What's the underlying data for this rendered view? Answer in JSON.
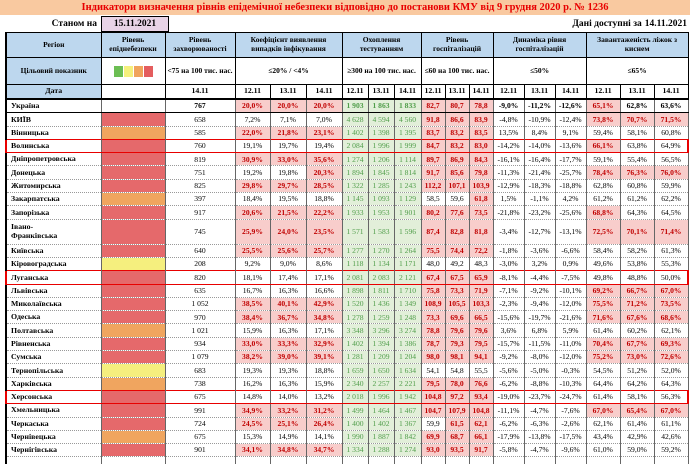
{
  "title": "Індикатори визначення рівнів епідемічної небезпеки відповідно до постанови КМУ від 9 грудня 2020 р. № 1236",
  "meta": {
    "as_of_label": "Станом на",
    "as_of_date": "15.11.2021",
    "available_label": "Дані доступні за",
    "available_date": "14.11.2021"
  },
  "header": {
    "region": "Регіон",
    "target_label": "Цільовий показник",
    "date_label": "Дата",
    "epidemic_level": "Рівень епіднебезпеки",
    "groups": [
      {
        "label": "Рівень захворюваності",
        "target": "<75 на 100 тис. нас.",
        "dates": [
          "14.11"
        ]
      },
      {
        "label": "Коефіцієнт виявлення випадків інфікування",
        "target": "≤20% / <4%",
        "dates": [
          "12.11",
          "13.11",
          "14.11"
        ]
      },
      {
        "label": "Охоплення тестуванням",
        "target": "≥300 на 100 тис. нас.",
        "dates": [
          "12.11",
          "13.11",
          "14.11"
        ]
      },
      {
        "label": "Рівень госпіталізацій",
        "target": "≤60 на 100 тис. нас.",
        "dates": [
          "12.11",
          "13.11",
          "14.11"
        ]
      },
      {
        "label": "Динаміка рівня госпіталізацій",
        "target": "≤50%",
        "dates": [
          "12.11",
          "13.11",
          "14.11"
        ]
      },
      {
        "label": "Завантаженість ліжок з киснем",
        "target": "≤65%",
        "dates": [
          "12.11",
          "13.11",
          "14.11"
        ]
      }
    ]
  },
  "legend_colors": [
    "#6CBE53",
    "#F5F07D",
    "#F0A45C",
    "#E45D5E"
  ],
  "palette": {
    "title_bg": "#F9C9A0",
    "title_fg": "#E80000",
    "head_bg": "#BDD7EE",
    "asof_bg": "#E8D3E6",
    "alarm_bg": "#F8CDCB",
    "alarm_fg": "#C00000",
    "good_bg": "#E2EFD9",
    "good_fg": "#4F9D49",
    "outline": "#E80000",
    "levels": {
      "red": "#E5696B",
      "orange": "#F0A55F",
      "yellow": "#F5EF7E"
    }
  },
  "thresholds": {
    "coef_alarm_gte": 20.0,
    "hosp_alarm_gt": 60.0,
    "beds_alarm_gt": 65.0
  },
  "rows": [
    {
      "region": "Україна",
      "level": "none",
      "bold": true,
      "outlined": false,
      "incidence": "767",
      "coef": [
        "20,0%",
        "20,0%",
        "20,0%"
      ],
      "test": [
        "1 903",
        "1 863",
        "1 833"
      ],
      "hosp": [
        "82,7",
        "80,7",
        "78,8"
      ],
      "dyn": [
        "-9,0%",
        "-11,2%",
        "-12,6%"
      ],
      "beds": [
        "65,1%",
        "62,8%",
        "63,6%"
      ]
    },
    {
      "region": "КИЇВ",
      "level": "red",
      "incidence": "658",
      "coef": [
        "7,2%",
        "7,1%",
        "7,0%"
      ],
      "test": [
        "4 628",
        "4 594",
        "4 560"
      ],
      "hosp": [
        "91,8",
        "86,6",
        "83,9"
      ],
      "dyn": [
        "-4,8%",
        "-10,9%",
        "-12,4%"
      ],
      "beds": [
        "73,8%",
        "70,7%",
        "71,5%"
      ]
    },
    {
      "region": "Вінницька",
      "level": "orange",
      "incidence": "585",
      "coef": [
        "22,0%",
        "21,8%",
        "23,1%"
      ],
      "test": [
        "1 402",
        "1 398",
        "1 395"
      ],
      "hosp": [
        "83,7",
        "83,2",
        "83,5"
      ],
      "dyn": [
        "13,5%",
        "8,4%",
        "9,1%"
      ],
      "beds": [
        "59,4%",
        "58,1%",
        "60,8%"
      ]
    },
    {
      "region": "Волинська",
      "level": "red",
      "outlined": true,
      "incidence": "760",
      "coef": [
        "19,1%",
        "19,7%",
        "19,4%"
      ],
      "test": [
        "2 084",
        "1 996",
        "1 999"
      ],
      "hosp": [
        "84,7",
        "83,2",
        "83,0"
      ],
      "dyn": [
        "-14,2%",
        "-14,0%",
        "-13,6%"
      ],
      "beds": [
        "66,1%",
        "63,8%",
        "64,9%"
      ]
    },
    {
      "region": "Дніпропетровська",
      "level": "red",
      "incidence": "819",
      "coef": [
        "30,9%",
        "33,0%",
        "35,6%"
      ],
      "test": [
        "1 274",
        "1 206",
        "1 114"
      ],
      "hosp": [
        "89,7",
        "86,9",
        "84,3"
      ],
      "dyn": [
        "-16,1%",
        "-16,4%",
        "-17,7%"
      ],
      "beds": [
        "59,1%",
        "55,4%",
        "56,5%"
      ]
    },
    {
      "region": "Донецька",
      "level": "red",
      "incidence": "751",
      "coef": [
        "19,2%",
        "19,8%",
        "20,3%"
      ],
      "test": [
        "1 894",
        "1 845",
        "1 814"
      ],
      "hosp": [
        "91,7",
        "85,6",
        "79,8"
      ],
      "dyn": [
        "-11,3%",
        "-21,4%",
        "-25,7%"
      ],
      "beds": [
        "78,4%",
        "76,3%",
        "76,0%"
      ]
    },
    {
      "region": "Житомирська",
      "level": "red",
      "incidence": "825",
      "coef": [
        "29,8%",
        "29,7%",
        "28,5%"
      ],
      "test": [
        "1 322",
        "1 285",
        "1 243"
      ],
      "hosp": [
        "112,2",
        "107,1",
        "103,9"
      ],
      "dyn": [
        "-12,9%",
        "-18,3%",
        "-18,8%"
      ],
      "beds": [
        "62,8%",
        "60,8%",
        "59,9%"
      ]
    },
    {
      "region": "Закарпатська",
      "level": "orange",
      "incidence": "397",
      "coef": [
        "18,4%",
        "19,5%",
        "18,8%"
      ],
      "test": [
        "1 145",
        "1 093",
        "1 129"
      ],
      "hosp": [
        "58,5",
        "59,6",
        "61,8"
      ],
      "dyn": [
        "1,5%",
        "-1,1%",
        "4,2%"
      ],
      "beds": [
        "61,2%",
        "61,2%",
        "62,2%"
      ]
    },
    {
      "region": "Запорізька",
      "level": "red",
      "incidence": "917",
      "coef": [
        "20,6%",
        "21,5%",
        "22,2%"
      ],
      "test": [
        "1 933",
        "1 953",
        "1 901"
      ],
      "hosp": [
        "80,2",
        "77,6",
        "73,5"
      ],
      "dyn": [
        "-21,8%",
        "-23,2%",
        "-25,6%"
      ],
      "beds": [
        "68,8%",
        "64,3%",
        "64,5%"
      ]
    },
    {
      "region": "Івано-Франківська",
      "level": "red",
      "tall": true,
      "incidence": "745",
      "coef": [
        "25,9%",
        "24,0%",
        "23,5%"
      ],
      "test": [
        "1 571",
        "1 583",
        "1 596"
      ],
      "hosp": [
        "87,4",
        "82,8",
        "81,8"
      ],
      "dyn": [
        "-3,4%",
        "-12,7%",
        "-13,1%"
      ],
      "beds": [
        "72,5%",
        "70,1%",
        "71,4%"
      ]
    },
    {
      "region": "Київська",
      "level": "red",
      "incidence": "640",
      "coef": [
        "25,5%",
        "25,6%",
        "25,7%"
      ],
      "test": [
        "1 277",
        "1 270",
        "1 264"
      ],
      "hosp": [
        "75,5",
        "74,4",
        "72,2"
      ],
      "dyn": [
        "-1,8%",
        "-3,6%",
        "-6,6%"
      ],
      "beds": [
        "58,4%",
        "58,2%",
        "61,3%"
      ]
    },
    {
      "region": "Кіровоградська",
      "level": "yellow",
      "incidence": "208",
      "coef": [
        "9,2%",
        "9,0%",
        "8,6%"
      ],
      "test": [
        "1 118",
        "1 134",
        "1 171"
      ],
      "hosp": [
        "48,0",
        "49,2",
        "48,3"
      ],
      "dyn": [
        "-3,0%",
        "3,2%",
        "0,9%"
      ],
      "beds": [
        "49,6%",
        "53,8%",
        "55,3%"
      ]
    },
    {
      "region": "Луганська",
      "level": "red",
      "outlined": true,
      "incidence": "820",
      "coef": [
        "18,1%",
        "17,4%",
        "17,1%"
      ],
      "test": [
        "2 081",
        "2 083",
        "2 121"
      ],
      "hosp": [
        "67,4",
        "67,5",
        "65,9"
      ],
      "dyn": [
        "-8,1%",
        "-4,4%",
        "-7,5%"
      ],
      "beds": [
        "49,8%",
        "48,8%",
        "50,0%"
      ]
    },
    {
      "region": "Львівська",
      "level": "red",
      "incidence": "635",
      "coef": [
        "16,7%",
        "16,3%",
        "16,6%"
      ],
      "test": [
        "1 898",
        "1 811",
        "1 710"
      ],
      "hosp": [
        "75,8",
        "73,3",
        "71,9"
      ],
      "dyn": [
        "-7,1%",
        "-9,2%",
        "-10,1%"
      ],
      "beds": [
        "69,2%",
        "66,7%",
        "67,0%"
      ]
    },
    {
      "region": "Миколаївська",
      "level": "red",
      "incidence": "1 052",
      "coef": [
        "38,5%",
        "40,1%",
        "42,9%"
      ],
      "test": [
        "1 520",
        "1 436",
        "1 349"
      ],
      "hosp": [
        "108,9",
        "105,5",
        "103,3"
      ],
      "dyn": [
        "-2,3%",
        "-9,4%",
        "-12,0%"
      ],
      "beds": [
        "75,5%",
        "71,2%",
        "73,5%"
      ]
    },
    {
      "region": "Одеська",
      "level": "red",
      "incidence": "970",
      "coef": [
        "38,4%",
        "36,7%",
        "34,8%"
      ],
      "test": [
        "1 278",
        "1 259",
        "1 248"
      ],
      "hosp": [
        "73,3",
        "69,6",
        "66,5"
      ],
      "dyn": [
        "-15,6%",
        "-19,7%",
        "-21,6%"
      ],
      "beds": [
        "71,6%",
        "67,6%",
        "68,6%"
      ]
    },
    {
      "region": "Полтавська",
      "level": "orange",
      "incidence": "1 021",
      "coef": [
        "15,9%",
        "16,3%",
        "17,1%"
      ],
      "test": [
        "3 348",
        "3 296",
        "3 274"
      ],
      "hosp": [
        "78,8",
        "79,6",
        "79,6"
      ],
      "dyn": [
        "3,6%",
        "6,8%",
        "5,9%"
      ],
      "beds": [
        "61,4%",
        "60,2%",
        "62,1%"
      ]
    },
    {
      "region": "Рівненська",
      "level": "red",
      "incidence": "934",
      "coef": [
        "33,0%",
        "33,3%",
        "32,9%"
      ],
      "test": [
        "1 402",
        "1 394",
        "1 386"
      ],
      "hosp": [
        "78,7",
        "79,3",
        "79,5"
      ],
      "dyn": [
        "-15,7%",
        "-11,5%",
        "-11,0%"
      ],
      "beds": [
        "70,4%",
        "67,7%",
        "69,3%"
      ]
    },
    {
      "region": "Сумська",
      "level": "red",
      "incidence": "1 079",
      "coef": [
        "38,2%",
        "39,0%",
        "39,1%"
      ],
      "test": [
        "1 281",
        "1 209",
        "1 204"
      ],
      "hosp": [
        "98,0",
        "98,1",
        "94,1"
      ],
      "dyn": [
        "-9,2%",
        "-8,0%",
        "-12,0%"
      ],
      "beds": [
        "75,2%",
        "73,0%",
        "72,6%"
      ]
    },
    {
      "region": "Тернопільська",
      "level": "yellow",
      "incidence": "683",
      "coef": [
        "19,3%",
        "19,3%",
        "18,8%"
      ],
      "test": [
        "1 659",
        "1 650",
        "1 634"
      ],
      "hosp": [
        "54,1",
        "54,8",
        "55,5"
      ],
      "dyn": [
        "-5,6%",
        "-5,0%",
        "-0,3%"
      ],
      "beds": [
        "54,5%",
        "51,2%",
        "52,0%"
      ]
    },
    {
      "region": "Харківська",
      "level": "orange",
      "incidence": "738",
      "coef": [
        "16,2%",
        "16,3%",
        "15,9%"
      ],
      "test": [
        "2 340",
        "2 257",
        "2 221"
      ],
      "hosp": [
        "79,5",
        "78,0",
        "76,6"
      ],
      "dyn": [
        "-6,2%",
        "-8,8%",
        "-10,3%"
      ],
      "beds": [
        "64,4%",
        "64,2%",
        "64,3%"
      ]
    },
    {
      "region": "Херсонська",
      "level": "red",
      "outlined": true,
      "incidence": "675",
      "coef": [
        "14,8%",
        "14,0%",
        "13,2%"
      ],
      "test": [
        "2 018",
        "1 996",
        "1 942"
      ],
      "hosp": [
        "104,8",
        "97,2",
        "93,4"
      ],
      "dyn": [
        "-19,0%",
        "-23,7%",
        "-24,7%"
      ],
      "beds": [
        "61,4%",
        "58,1%",
        "56,3%"
      ]
    },
    {
      "region": "Хмельницька",
      "level": "red",
      "incidence": "991",
      "coef": [
        "34,9%",
        "33,2%",
        "31,2%"
      ],
      "test": [
        "1 499",
        "1 464",
        "1 467"
      ],
      "hosp": [
        "104,7",
        "107,9",
        "104,8"
      ],
      "dyn": [
        "-11,1%",
        "-4,7%",
        "-7,6%"
      ],
      "beds": [
        "67,0%",
        "65,4%",
        "67,0%"
      ]
    },
    {
      "region": "Черкаська",
      "level": "red",
      "incidence": "724",
      "coef": [
        "24,5%",
        "25,1%",
        "26,4%"
      ],
      "test": [
        "1 400",
        "1 402",
        "1 367"
      ],
      "hosp": [
        "59,9",
        "61,5",
        "62,1"
      ],
      "dyn": [
        "-6,2%",
        "-6,3%",
        "-2,6%"
      ],
      "beds": [
        "62,1%",
        "61,4%",
        "61,1%"
      ]
    },
    {
      "region": "Чернівецька",
      "level": "orange",
      "incidence": "675",
      "coef": [
        "15,3%",
        "14,9%",
        "14,1%"
      ],
      "test": [
        "1 990",
        "1 887",
        "1 842"
      ],
      "hosp": [
        "69,9",
        "68,7",
        "66,1"
      ],
      "dyn": [
        "-17,9%",
        "-13,8%",
        "-17,5%"
      ],
      "beds": [
        "43,4%",
        "42,9%",
        "42,6%"
      ]
    },
    {
      "region": "Чернігівська",
      "level": "red",
      "incidence": "901",
      "coef": [
        "34,1%",
        "34,8%",
        "34,7%"
      ],
      "test": [
        "1 334",
        "1 288",
        "1 274"
      ],
      "hosp": [
        "93,0",
        "93,5",
        "91,7"
      ],
      "dyn": [
        "-5,8%",
        "-4,7%",
        "-9,6%"
      ],
      "beds": [
        "61,0%",
        "59,0%",
        "59,2%"
      ]
    }
  ]
}
